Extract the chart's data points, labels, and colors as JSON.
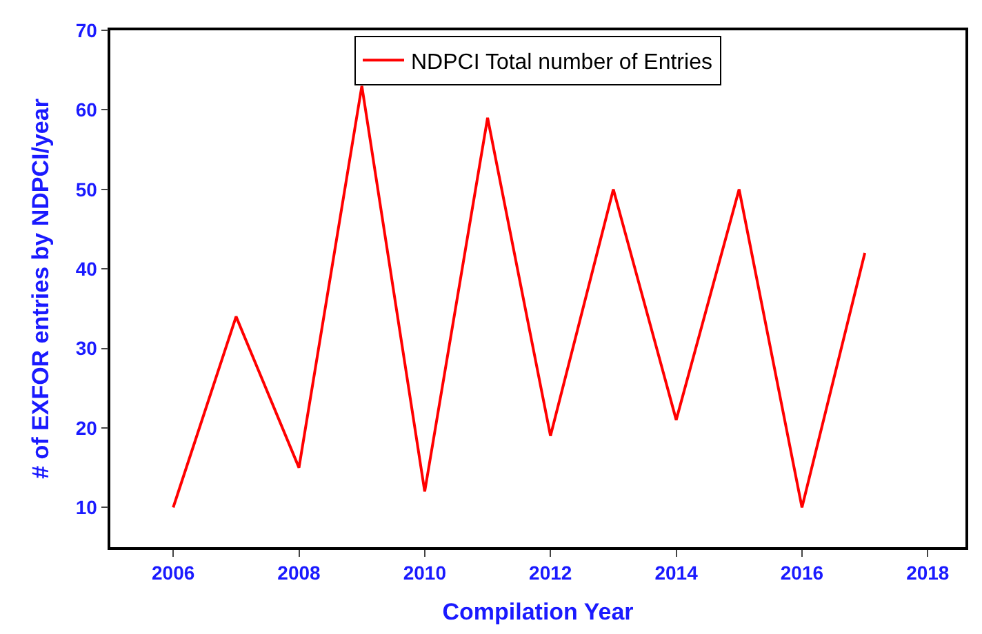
{
  "chart_data": {
    "type": "line",
    "xlabel": "Compilation Year",
    "ylabel": "# of EXFOR entries by NDPCI/year",
    "x": [
      2006,
      2007,
      2008,
      2009,
      2010,
      2011,
      2012,
      2013,
      2014,
      2015,
      2016,
      2017
    ],
    "series": [
      {
        "name": "NDPCI Total number of Entries",
        "color": "#ff0000",
        "values": [
          10,
          34,
          15,
          63,
          12,
          59,
          19,
          50,
          21,
          50,
          10,
          42
        ]
      }
    ],
    "xlim": [
      2005,
      2018.6
    ],
    "xticks": [
      2006,
      2008,
      2010,
      2012,
      2014,
      2016,
      2018
    ],
    "ylim": [
      5,
      70
    ],
    "yticks": [
      10,
      20,
      30,
      40,
      50,
      60,
      70
    ],
    "legend": "top",
    "marker": "none",
    "line_style": "solid"
  }
}
